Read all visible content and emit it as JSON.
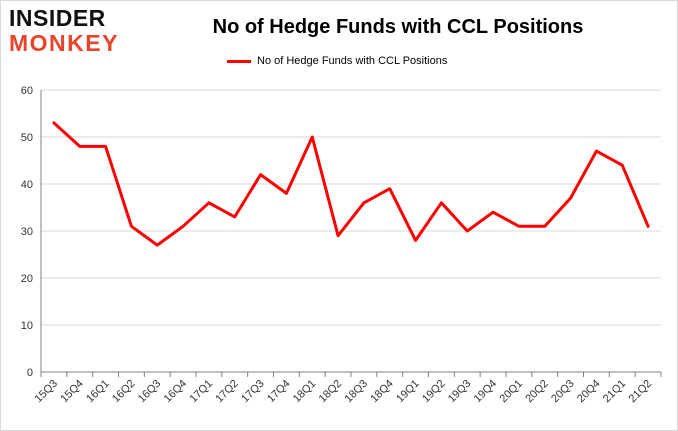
{
  "brand": {
    "line1": "INSIDER",
    "line2": "MONKEY"
  },
  "colors": {
    "series": "#ff0000",
    "grid": "#d9d9d9",
    "axis": "#808080",
    "brand_accent": "#e8452c"
  },
  "chart_data": {
    "type": "line",
    "title": "No of Hedge Funds with CCL Positions",
    "xlabel": "",
    "ylabel": "",
    "ylim": [
      0,
      60
    ],
    "yticks": [
      0,
      10,
      20,
      30,
      40,
      50,
      60
    ],
    "grid": true,
    "legend_position": "top-center",
    "categories": [
      "15Q3",
      "15Q4",
      "16Q1",
      "16Q2",
      "16Q3",
      "16Q4",
      "17Q1",
      "17Q2",
      "17Q3",
      "17Q4",
      "18Q1",
      "18Q2",
      "18Q3",
      "18Q4",
      "19Q1",
      "19Q2",
      "19Q3",
      "19Q4",
      "20Q1",
      "20Q2",
      "20Q3",
      "20Q4",
      "21Q1",
      "21Q2"
    ],
    "series": [
      {
        "name": "No of Hedge Funds with CCL Positions",
        "values": [
          53,
          48,
          48,
          31,
          27,
          31,
          36,
          33,
          42,
          38,
          50,
          29,
          36,
          39,
          28,
          36,
          30,
          34,
          31,
          31,
          37,
          47,
          44,
          31
        ]
      }
    ]
  }
}
